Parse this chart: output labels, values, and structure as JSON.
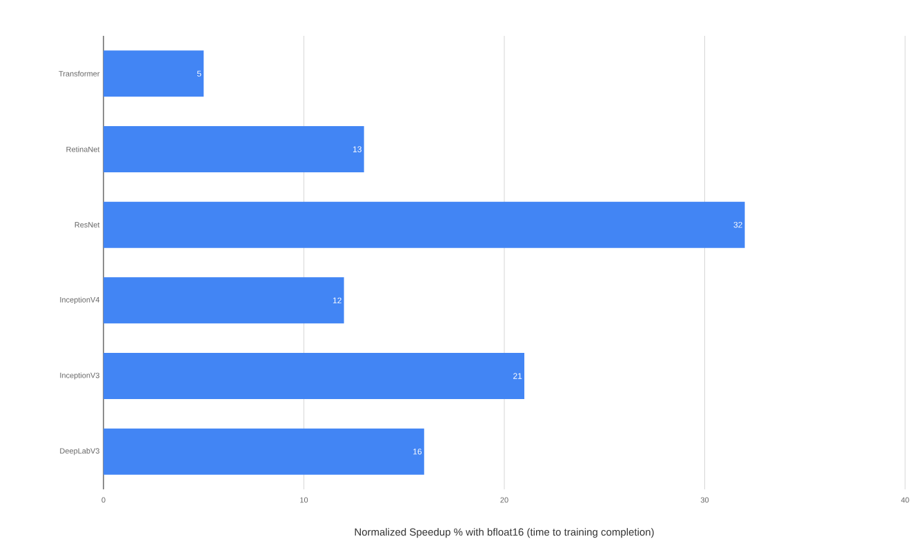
{
  "chart_data": {
    "type": "bar",
    "orientation": "horizontal",
    "xlabel": "Normalized Speedup % with bfloat16 (time to training completion)",
    "categories": [
      "Transformer",
      "RetinaNet",
      "ResNet",
      "InceptionV4",
      "InceptionV3",
      "DeepLabV3"
    ],
    "values": [
      5,
      13,
      32,
      12,
      21,
      16
    ],
    "color": "#4285f4",
    "xlim": [
      0,
      40
    ],
    "xticks": [
      0,
      10,
      20,
      30,
      40
    ],
    "grid": "x",
    "data_labels": true
  }
}
